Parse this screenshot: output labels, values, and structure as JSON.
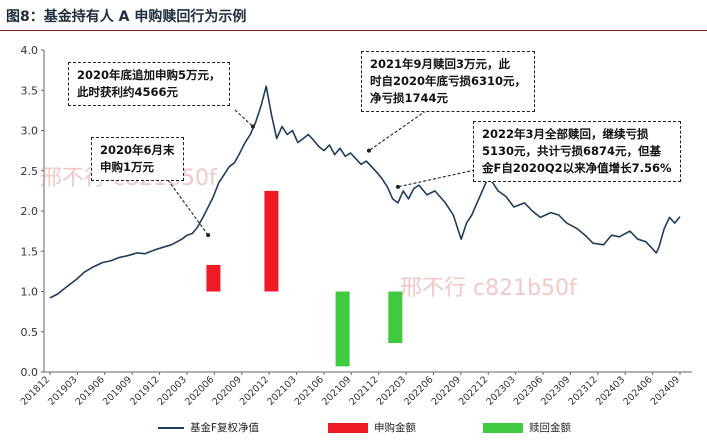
{
  "figure_title": "图8：基金持有人 A 申购赎回行为示例",
  "watermarks": [
    "邢不行 c821b50f",
    "邢不行 c821b50f"
  ],
  "annotations": [
    {
      "id": "ann1",
      "text": "2020年底追加申购5万元，\n此时获利约4566元"
    },
    {
      "id": "ann2",
      "text": "2020年6月末\n申购1万元"
    },
    {
      "id": "ann3",
      "text": "2021年9月赎回3万元，此\n时自2020年底亏损6310元，\n净亏损1744元"
    },
    {
      "id": "ann4",
      "text": "2022年3月全部赎回，继续亏损\n5130元，共计亏损6874元，但基\n金F自2020Q2以来净值增长7.56%"
    }
  ],
  "legend": {
    "nav": "基金F复权净值",
    "buy": "申购金额",
    "redeem": "赎回金额"
  },
  "colors": {
    "nav_line": "#1f3d5c",
    "buy_bar": "#ee1b24",
    "redeem_bar": "#3fca3f",
    "axis": "#666666",
    "title_rule": "#8a1f1f"
  },
  "chart_data": {
    "type": "line",
    "title": "",
    "xlabel": "",
    "ylabel": "",
    "ylim": [
      0.0,
      4.0
    ],
    "yticks": [
      "0.0",
      "0.5",
      "1.0",
      "1.5",
      "2.0",
      "2.5",
      "3.0",
      "3.5",
      "4.0"
    ],
    "x_tick_labels": [
      "201812",
      "201903",
      "201906",
      "201909",
      "201912",
      "202003",
      "202006",
      "202009",
      "202012",
      "202103",
      "202106",
      "202109",
      "202112",
      "202203",
      "202206",
      "202209",
      "202212",
      "202303",
      "202306",
      "202309",
      "202312",
      "202403",
      "202406",
      "202409"
    ],
    "x_range": [
      0,
      23.9
    ],
    "series": [
      {
        "name": "基金F复权净值",
        "x": [
          0,
          0.3,
          0.6,
          1.0,
          1.3,
          1.6,
          2.0,
          2.3,
          2.6,
          3.0,
          3.3,
          3.6,
          4.0,
          4.3,
          4.6,
          5.0,
          5.2,
          5.4,
          5.6,
          5.8,
          6.0,
          6.2,
          6.4,
          6.6,
          6.8,
          7.0,
          7.2,
          7.4,
          7.6,
          7.8,
          8.0,
          8.2,
          8.4,
          8.6,
          8.8,
          9.0,
          9.2,
          9.4,
          9.6,
          9.8,
          10.0,
          10.2,
          10.4,
          10.6,
          10.8,
          11.0,
          11.2,
          11.4,
          11.6,
          11.8,
          12.0,
          12.2,
          12.4,
          12.6,
          12.8,
          13.0,
          13.2,
          13.4,
          13.6,
          13.8,
          14.0,
          14.3,
          14.6,
          15.0,
          15.3,
          15.6,
          15.8,
          16.0,
          16.2,
          16.4,
          16.6,
          16.8,
          17.0,
          17.3,
          17.6,
          18.0,
          18.3,
          18.6,
          19.0,
          19.3,
          19.6,
          20.0,
          20.3,
          20.6,
          21.0,
          21.3,
          21.6,
          22.0,
          22.3,
          22.6,
          22.8,
          23.0,
          23.1,
          23.3,
          23.5,
          23.7,
          23.9
        ],
        "values": [
          0.92,
          0.97,
          1.05,
          1.15,
          1.24,
          1.3,
          1.36,
          1.38,
          1.42,
          1.45,
          1.48,
          1.47,
          1.52,
          1.55,
          1.58,
          1.65,
          1.7,
          1.72,
          1.8,
          1.92,
          2.05,
          2.18,
          2.35,
          2.45,
          2.55,
          2.6,
          2.72,
          2.85,
          2.95,
          3.1,
          3.3,
          3.55,
          3.2,
          2.9,
          3.05,
          2.95,
          3.0,
          2.85,
          2.9,
          2.95,
          2.88,
          2.8,
          2.75,
          2.82,
          2.7,
          2.78,
          2.68,
          2.72,
          2.65,
          2.58,
          2.62,
          2.55,
          2.48,
          2.4,
          2.3,
          2.15,
          2.1,
          2.25,
          2.15,
          2.28,
          2.32,
          2.2,
          2.25,
          2.1,
          1.95,
          1.65,
          1.85,
          1.95,
          2.1,
          2.25,
          2.4,
          2.35,
          2.25,
          2.18,
          2.05,
          2.1,
          2.0,
          1.92,
          1.98,
          1.95,
          1.85,
          1.78,
          1.7,
          1.6,
          1.58,
          1.7,
          1.68,
          1.75,
          1.65,
          1.62,
          1.55,
          1.48,
          1.55,
          1.78,
          1.92,
          1.85,
          1.93
        ]
      }
    ],
    "bars": [
      {
        "name": "申购金额",
        "x": 6.2,
        "base": 1.0,
        "top": 1.33
      },
      {
        "name": "申购金额",
        "x": 8.4,
        "base": 1.0,
        "top": 2.25
      },
      {
        "name": "赎回金额",
        "x": 11.1,
        "base": 1.0,
        "top": 0.07
      },
      {
        "name": "赎回金额",
        "x": 13.1,
        "base": 1.0,
        "top": 0.36
      }
    ]
  }
}
